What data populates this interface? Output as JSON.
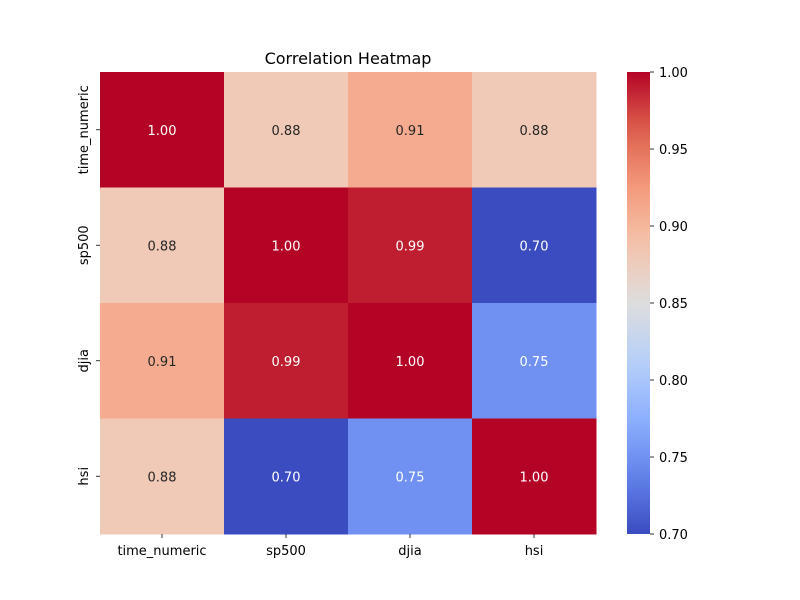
{
  "chart_data": {
    "type": "heatmap",
    "title": "Correlation Heatmap",
    "rows": [
      "time_numeric",
      "sp500",
      "djia",
      "hsi"
    ],
    "columns": [
      "time_numeric",
      "sp500",
      "djia",
      "hsi"
    ],
    "values": [
      [
        1.0,
        0.88,
        0.91,
        0.88
      ],
      [
        0.88,
        1.0,
        0.99,
        0.7
      ],
      [
        0.91,
        0.99,
        1.0,
        0.75
      ],
      [
        0.88,
        0.7,
        0.75,
        1.0
      ]
    ],
    "cell_labels": [
      [
        "1.00",
        "0.88",
        "0.91",
        "0.88"
      ],
      [
        "0.88",
        "1.00",
        "0.99",
        "0.70"
      ],
      [
        "0.91",
        "0.99",
        "1.00",
        "0.75"
      ],
      [
        "0.88",
        "0.70",
        "0.75",
        "1.00"
      ]
    ],
    "colormap": "coolwarm",
    "vmin": 0.7,
    "vmax": 1.0,
    "colorbar_ticks": [
      "0.70",
      "0.75",
      "0.80",
      "0.85",
      "0.90",
      "0.95",
      "1.00"
    ],
    "colorbar_tick_values": [
      0.7,
      0.75,
      0.8,
      0.85,
      0.9,
      0.95,
      1.0
    ],
    "annotations": true
  }
}
